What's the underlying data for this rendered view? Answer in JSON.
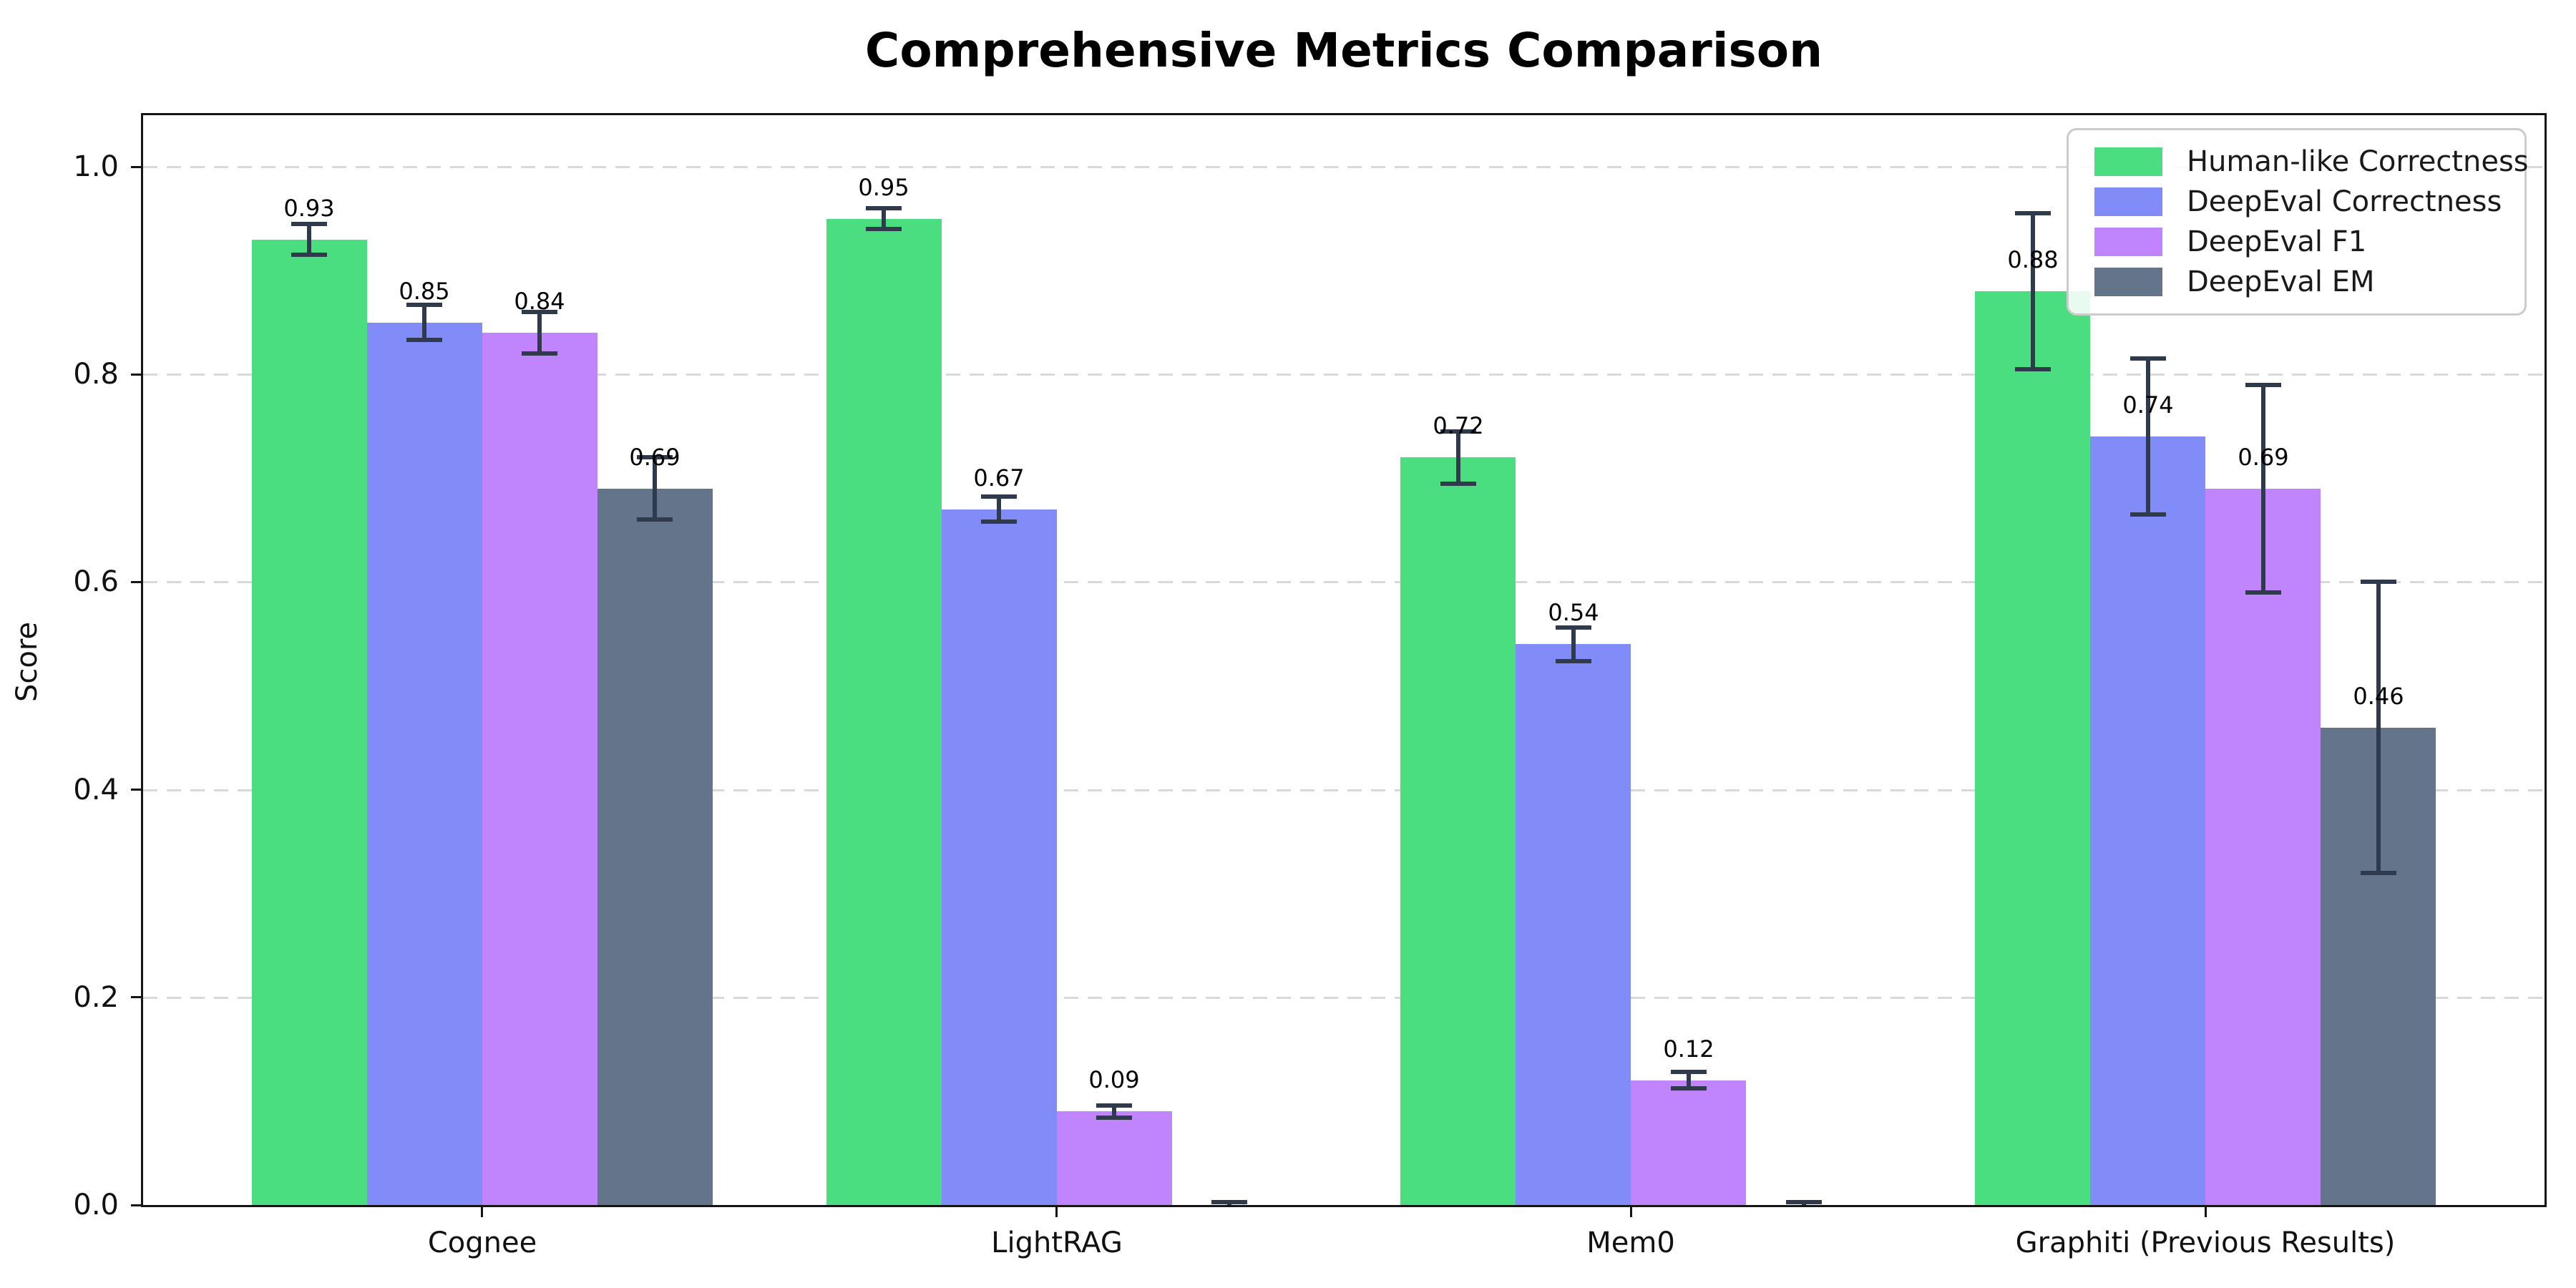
{
  "figure": {
    "title": "Comprehensive Metrics Comparison",
    "ylabel": "Score"
  },
  "chart_data": {
    "type": "bar",
    "title": "Comprehensive Metrics Comparison",
    "xlabel": "",
    "ylabel": "Score",
    "categories": [
      "Cognee",
      "LightRAG",
      "Mem0",
      "Graphiti (Previous Results)"
    ],
    "series": [
      {
        "name": "Human-like Correctness",
        "color": "#4ade80",
        "values": [
          0.93,
          0.95,
          0.72,
          0.88
        ],
        "errors": [
          0.015,
          0.01,
          0.025,
          0.075
        ]
      },
      {
        "name": "DeepEval Correctness",
        "color": "#818cf8",
        "values": [
          0.85,
          0.67,
          0.54,
          0.74
        ],
        "errors": [
          0.017,
          0.012,
          0.016,
          0.075
        ]
      },
      {
        "name": "DeepEval F1",
        "color": "#c084fc",
        "values": [
          0.84,
          0.09,
          0.12,
          0.69
        ],
        "errors": [
          0.02,
          0.006,
          0.008,
          0.1
        ]
      },
      {
        "name": "DeepEval EM",
        "color": "#64748b",
        "values": [
          0.69,
          0.0,
          0.0,
          0.46
        ],
        "errors": [
          0.03,
          0.003,
          0.003,
          0.14
        ]
      }
    ],
    "bar_value_labels": [
      "0.93",
      "0.85",
      "0.84",
      "0.69",
      "0.95",
      "0.67",
      "0.09",
      "0.72",
      "0.54",
      "0.12",
      "0.88",
      "0.74",
      "0.69",
      "0.46"
    ],
    "error_bar_color": "#2f3b4d",
    "grid": "horizontal dashed",
    "grid_color": "#d9d9d9",
    "axis_color": "#151515",
    "yticks": [
      0.0,
      0.2,
      0.4,
      0.6,
      0.8,
      1.0
    ],
    "ytick_labels": [
      "0.0",
      "0.2",
      "0.4",
      "0.6",
      "0.8",
      "1.0"
    ],
    "ylim": [
      0,
      1.05
    ],
    "legend_position": "upper right"
  }
}
